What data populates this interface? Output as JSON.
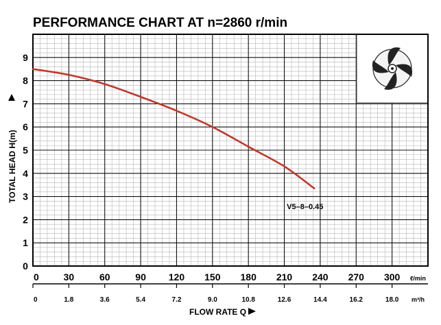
{
  "chart_data": {
    "type": "line",
    "title": "PERFORMANCE CHART AT n=2860 r/min",
    "ylabel": "TOTAL HEAD H(m)",
    "xlabel": "FLOW RATE Q",
    "ylim": [
      0,
      10
    ],
    "xlim": [
      0,
      330
    ],
    "grid": true,
    "y_ticks": [
      "0",
      "1",
      "2",
      "3",
      "4",
      "5",
      "6",
      "7",
      "8",
      "9"
    ],
    "x_ticks_primary": [
      "0",
      "30",
      "60",
      "90",
      "120",
      "150",
      "180",
      "210",
      "240",
      "270",
      "300"
    ],
    "x_unit_primary": "ℓ/min",
    "x_ticks_secondary": [
      "0",
      "1.8",
      "3.6",
      "5.4",
      "7.2",
      "9.0",
      "10.8",
      "12.6",
      "14.4",
      "16.2",
      "18.0"
    ],
    "x_unit_secondary": "m³/h",
    "series": [
      {
        "name": "V5–8–0.45",
        "color": "#c0392b",
        "x": [
          0,
          30,
          60,
          90,
          120,
          150,
          180,
          210,
          235
        ],
        "y": [
          8.5,
          8.25,
          7.85,
          7.3,
          6.7,
          6.0,
          5.15,
          4.3,
          3.35
        ]
      }
    ],
    "inset": "impeller-image"
  }
}
